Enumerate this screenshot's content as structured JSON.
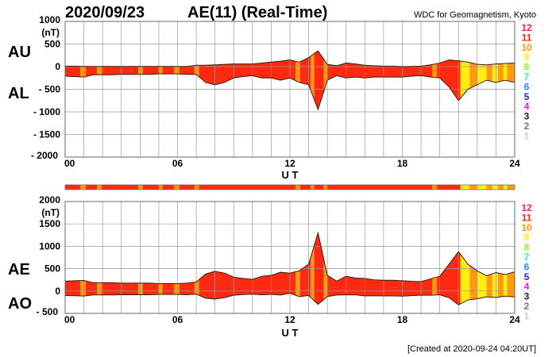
{
  "header": {
    "date": "2020/09/23",
    "title": "AE(11) (Real-Time)",
    "source": "WDC for Geomagnetism, Kyoto"
  },
  "footer": {
    "created": "[Created at 2020-09-24 04:20UT]"
  },
  "colors": {
    "line": "#3a1a10",
    "grid": "#999999"
  },
  "station_legend": [
    {
      "label": "12",
      "color": "#ff1a6e"
    },
    {
      "label": "11",
      "color": "#ff2a10"
    },
    {
      "label": "10",
      "color": "#ff9a10"
    },
    {
      "label": "9",
      "color": "#ffee10"
    },
    {
      "label": "8",
      "color": "#99ee22"
    },
    {
      "label": "7",
      "color": "#22eecc"
    },
    {
      "label": "6",
      "color": "#2288ff"
    },
    {
      "label": "5",
      "color": "#2222dd"
    },
    {
      "label": "4",
      "color": "#dd22dd"
    },
    {
      "label": "3",
      "color": "#222222"
    },
    {
      "label": "2",
      "color": "#777777"
    },
    {
      "label": "1",
      "color": "#cccccc"
    }
  ],
  "chart_data": [
    {
      "type": "area",
      "title": "AU / AL",
      "series_labels": [
        "AU",
        "AL"
      ],
      "unit": "(nT)",
      "xlabel": "U T",
      "xticks": [
        "00",
        "06",
        "12",
        "18",
        "24"
      ],
      "xlim": [
        0,
        24
      ],
      "ylim": [
        -2000,
        1000
      ],
      "yticks": [
        "1000",
        "500",
        "0",
        "- 500",
        "- 1000",
        "- 1500",
        "- 2000"
      ]
    },
    {
      "type": "area",
      "title": "AE / AO",
      "series_labels": [
        "AE",
        "AO"
      ],
      "unit": "(nT)",
      "xlabel": "U T",
      "xticks": [
        "00",
        "06",
        "12",
        "18",
        "24"
      ],
      "xlim": [
        0,
        24
      ],
      "ylim": [
        -500,
        2000
      ],
      "yticks": [
        "2000",
        "1500",
        "1000",
        "500",
        "0",
        "- 500"
      ]
    }
  ],
  "series": {
    "hours_step": 0.5,
    "AU": [
      10,
      10,
      5,
      5,
      5,
      5,
      5,
      5,
      5,
      5,
      5,
      5,
      5,
      5,
      30,
      30,
      40,
      50,
      60,
      60,
      60,
      80,
      100,
      120,
      150,
      100,
      200,
      350,
      50,
      20,
      80,
      60,
      30,
      20,
      10,
      10,
      0,
      5,
      10,
      40,
      80,
      150,
      130,
      100,
      50,
      40,
      60,
      70,
      80
    ],
    "AL": [
      -210,
      -220,
      -230,
      -180,
      -180,
      -180,
      -170,
      -170,
      -170,
      -170,
      -160,
      -160,
      -160,
      -170,
      -170,
      -350,
      -400,
      -350,
      -250,
      -220,
      -200,
      -250,
      -250,
      -300,
      -250,
      -350,
      -400,
      -950,
      -300,
      -200,
      -250,
      -230,
      -250,
      -230,
      -230,
      -230,
      -230,
      -210,
      -200,
      -230,
      -250,
      -450,
      -750,
      -500,
      -400,
      -300,
      -350,
      -300,
      -350
    ]
  },
  "stations": [
    [
      0,
      0.8,
      11
    ],
    [
      0.8,
      1.1,
      10
    ],
    [
      1.1,
      1.7,
      11
    ],
    [
      1.7,
      1.95,
      10
    ],
    [
      1.95,
      3.9,
      11
    ],
    [
      3.9,
      4.15,
      10
    ],
    [
      4.15,
      5.0,
      11
    ],
    [
      5.0,
      5.2,
      10
    ],
    [
      5.2,
      5.8,
      11
    ],
    [
      5.8,
      6.1,
      10
    ],
    [
      6.1,
      6.9,
      11
    ],
    [
      6.9,
      7.15,
      10
    ],
    [
      7.15,
      12.3,
      11
    ],
    [
      12.3,
      12.55,
      10
    ],
    [
      12.55,
      13.1,
      11
    ],
    [
      13.1,
      13.3,
      10
    ],
    [
      13.3,
      13.8,
      11
    ],
    [
      13.8,
      14.0,
      10
    ],
    [
      14.0,
      19.6,
      11
    ],
    [
      19.6,
      19.85,
      10
    ],
    [
      19.85,
      21.1,
      11
    ],
    [
      21.1,
      21.6,
      9
    ],
    [
      21.6,
      22.0,
      10
    ],
    [
      22.0,
      22.5,
      9
    ],
    [
      22.5,
      22.8,
      10
    ],
    [
      22.8,
      23.1,
      9
    ],
    [
      23.1,
      23.4,
      10
    ],
    [
      23.4,
      23.6,
      9
    ],
    [
      23.6,
      24,
      10
    ]
  ]
}
